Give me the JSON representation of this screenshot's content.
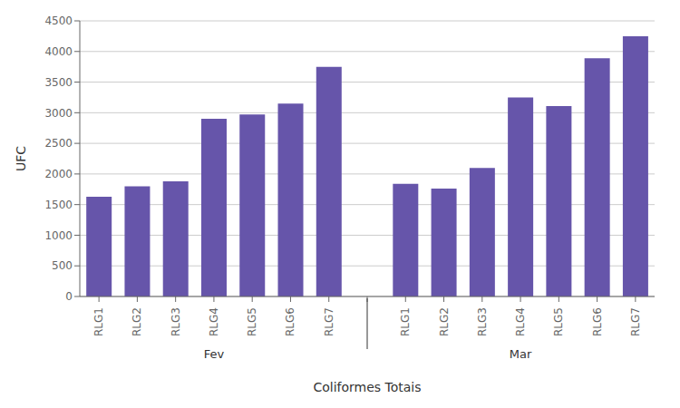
{
  "chart_data": {
    "type": "bar",
    "xlabel": "Coliformes Totais",
    "ylabel": "UFC",
    "groups": [
      {
        "name": "Fev",
        "categories": [
          "RLG1",
          "RLG2",
          "RLG3",
          "RLG4",
          "RLG5",
          "RLG6",
          "RLG7"
        ],
        "values": [
          1630,
          1800,
          1880,
          2900,
          2970,
          3150,
          3750
        ]
      },
      {
        "name": "Mar",
        "categories": [
          "RLG1",
          "RLG2",
          "RLG3",
          "RLG4",
          "RLG5",
          "RLG6",
          "RLG7"
        ],
        "values": [
          1840,
          1760,
          2100,
          3250,
          3110,
          3890,
          4250
        ]
      }
    ],
    "color": "#6655aa",
    "ylim": [
      0,
      4500
    ],
    "yticks": [
      0,
      500,
      1000,
      1500,
      2000,
      2500,
      3000,
      3500,
      4000,
      4500
    ],
    "grid": true
  }
}
